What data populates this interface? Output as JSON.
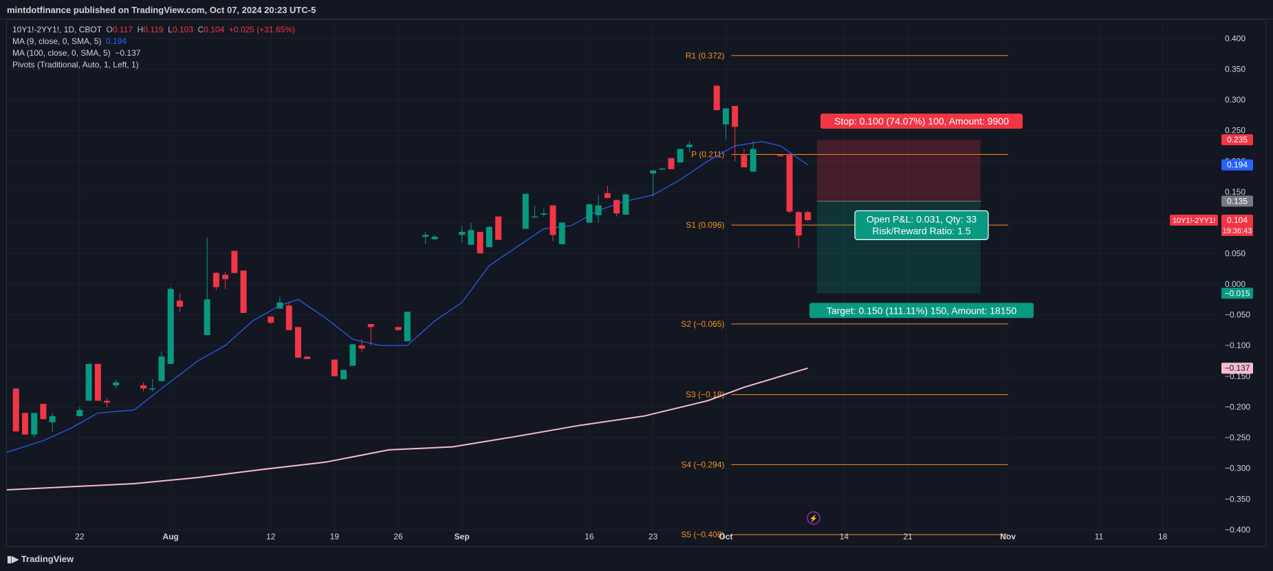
{
  "header": {
    "publisher_line": "mintdotfinance published on TradingView.com, Oct 07, 2024 20:23 UTC-5"
  },
  "legend": {
    "symbol": "10Y1!-2YY1!, 1D, CBOT",
    "o_label": "O",
    "o": "0.117",
    "h_label": "H",
    "h": "0.119",
    "l_label": "L",
    "l": "0.103",
    "c_label": "C",
    "c": "0.104",
    "change": "+0.025 (+31.65%)",
    "ma9_label": "MA (9, close, 0, SMA, 5)",
    "ma9_value": "0.194",
    "ma100_label": "MA (100, close, 0, SMA, 5)",
    "ma100_value": "−0.137",
    "pivots_label": "Pivots (Traditional, Auto, 1, Left, 1)"
  },
  "footer": {
    "brand": "TradingView"
  },
  "colors": {
    "up": "#089981",
    "down": "#f23645",
    "ma9": "#2962ff",
    "ma100": "#f8bbd0",
    "pivot": "#f7931a",
    "bg": "#131722",
    "grid": "#1e222d"
  },
  "chart_data": {
    "type": "candlestick",
    "ylim": [
      -0.4,
      0.43
    ],
    "y_ticks": [
      "0.400",
      "0.350",
      "0.300",
      "0.250",
      "0.200",
      "0.150",
      "0.100",
      "0.050",
      "0.000",
      "−0.050",
      "−0.100",
      "−0.150",
      "−0.200",
      "−0.250",
      "−0.300",
      "−0.350",
      "−0.400"
    ],
    "x_ticks": [
      {
        "label": "22",
        "date": "2024-07-22"
      },
      {
        "label": "Aug",
        "date": "2024-08-01"
      },
      {
        "label": "12",
        "date": "2024-08-12"
      },
      {
        "label": "19",
        "date": "2024-08-19"
      },
      {
        "label": "26",
        "date": "2024-08-26"
      },
      {
        "label": "Sep",
        "date": "2024-09-02"
      },
      {
        "label": "16",
        "date": "2024-09-16"
      },
      {
        "label": "23",
        "date": "2024-09-23"
      },
      {
        "label": "Oct",
        "date": "2024-10-01"
      },
      {
        "label": "14",
        "date": "2024-10-14"
      },
      {
        "label": "21",
        "date": "2024-10-21"
      },
      {
        "label": "Nov",
        "date": "2024-11-01"
      },
      {
        "label": "11",
        "date": "2024-11-11"
      },
      {
        "label": "18",
        "date": "2024-11-18"
      }
    ],
    "x_range": [
      "2024-07-14",
      "2024-11-24"
    ],
    "candles": [
      {
        "d": "2024-07-15",
        "o": -0.17,
        "h": -0.17,
        "l": -0.24,
        "c": -0.24
      },
      {
        "d": "2024-07-16",
        "o": -0.21,
        "h": -0.21,
        "l": -0.245,
        "c": -0.245
      },
      {
        "d": "2024-07-17",
        "o": -0.245,
        "h": -0.21,
        "l": -0.25,
        "c": -0.21
      },
      {
        "d": "2024-07-18",
        "o": -0.195,
        "h": -0.195,
        "l": -0.22,
        "c": -0.22
      },
      {
        "d": "2024-07-19",
        "o": -0.225,
        "h": -0.21,
        "l": -0.24,
        "c": -0.215
      },
      {
        "d": "2024-07-22",
        "o": -0.215,
        "h": -0.2,
        "l": -0.215,
        "c": -0.205
      },
      {
        "d": "2024-07-23",
        "o": -0.19,
        "h": -0.13,
        "l": -0.19,
        "c": -0.13
      },
      {
        "d": "2024-07-24",
        "o": -0.13,
        "h": -0.13,
        "l": -0.19,
        "c": -0.19
      },
      {
        "d": "2024-07-25",
        "o": -0.19,
        "h": -0.185,
        "l": -0.2,
        "c": -0.193
      },
      {
        "d": "2024-07-26",
        "o": -0.165,
        "h": -0.155,
        "l": -0.17,
        "c": -0.16
      },
      {
        "d": "2024-07-29",
        "o": -0.165,
        "h": -0.16,
        "l": -0.175,
        "c": -0.17
      },
      {
        "d": "2024-07-30",
        "o": -0.17,
        "h": -0.155,
        "l": -0.175,
        "c": -0.17
      },
      {
        "d": "2024-07-31",
        "o": -0.158,
        "h": -0.11,
        "l": -0.158,
        "c": -0.118
      },
      {
        "d": "2024-08-01",
        "o": -0.13,
        "h": -0.005,
        "l": -0.13,
        "c": -0.008
      },
      {
        "d": "2024-08-02",
        "o": -0.027,
        "h": -0.015,
        "l": -0.045,
        "c": -0.037
      },
      {
        "d": "2024-08-05",
        "o": -0.083,
        "h": 0.075,
        "l": -0.083,
        "c": -0.025
      },
      {
        "d": "2024-08-06",
        "o": 0.018,
        "h": 0.02,
        "l": -0.01,
        "c": -0.005
      },
      {
        "d": "2024-08-07",
        "o": 0.015,
        "h": 0.02,
        "l": -0.008,
        "c": 0.008
      },
      {
        "d": "2024-08-08",
        "o": 0.054,
        "h": 0.054,
        "l": 0.018,
        "c": 0.018
      },
      {
        "d": "2024-08-09",
        "o": 0.022,
        "h": 0.022,
        "l": -0.047,
        "c": -0.047
      },
      {
        "d": "2024-08-12",
        "o": -0.053,
        "h": -0.053,
        "l": -0.065,
        "c": -0.063
      },
      {
        "d": "2024-08-13",
        "o": -0.04,
        "h": -0.02,
        "l": -0.04,
        "c": -0.03
      },
      {
        "d": "2024-08-14",
        "o": -0.035,
        "h": -0.03,
        "l": -0.075,
        "c": -0.075
      },
      {
        "d": "2024-08-15",
        "o": -0.07,
        "h": -0.07,
        "l": -0.12,
        "c": -0.12
      },
      {
        "d": "2024-08-16",
        "o": -0.118,
        "h": -0.118,
        "l": -0.122,
        "c": -0.122
      },
      {
        "d": "2024-08-19",
        "o": -0.123,
        "h": -0.123,
        "l": -0.15,
        "c": -0.15
      },
      {
        "d": "2024-08-20",
        "o": -0.155,
        "h": -0.14,
        "l": -0.155,
        "c": -0.14
      },
      {
        "d": "2024-08-21",
        "o": -0.133,
        "h": -0.098,
        "l": -0.133,
        "c": -0.098
      },
      {
        "d": "2024-08-22",
        "o": -0.1,
        "h": -0.09,
        "l": -0.11,
        "c": -0.105
      },
      {
        "d": "2024-08-23",
        "o": -0.065,
        "h": -0.065,
        "l": -0.1,
        "c": -0.07
      },
      {
        "d": "2024-08-26",
        "o": -0.07,
        "h": -0.07,
        "l": -0.075,
        "c": -0.075
      },
      {
        "d": "2024-08-27",
        "o": -0.093,
        "h": -0.045,
        "l": -0.093,
        "c": -0.045
      },
      {
        "d": "2024-08-29",
        "o": 0.077,
        "h": 0.085,
        "l": 0.065,
        "c": 0.08
      },
      {
        "d": "2024-08-30",
        "o": 0.073,
        "h": 0.08,
        "l": 0.072,
        "c": 0.077
      },
      {
        "d": "2024-09-02",
        "o": 0.08,
        "h": 0.095,
        "l": 0.067,
        "c": 0.085
      },
      {
        "d": "2024-09-03",
        "o": 0.064,
        "h": 0.1,
        "l": 0.064,
        "c": 0.088
      },
      {
        "d": "2024-09-04",
        "o": 0.085,
        "h": 0.085,
        "l": 0.05,
        "c": 0.05
      },
      {
        "d": "2024-09-05",
        "o": 0.06,
        "h": 0.095,
        "l": 0.06,
        "c": 0.093
      },
      {
        "d": "2024-09-06",
        "o": 0.11,
        "h": 0.11,
        "l": 0.072,
        "c": 0.072
      },
      {
        "d": "2024-09-09",
        "o": 0.09,
        "h": 0.147,
        "l": 0.09,
        "c": 0.147
      },
      {
        "d": "2024-09-10",
        "o": 0.11,
        "h": 0.127,
        "l": 0.11,
        "c": 0.11
      },
      {
        "d": "2024-09-11",
        "o": 0.113,
        "h": 0.123,
        "l": 0.11,
        "c": 0.115
      },
      {
        "d": "2024-09-12",
        "o": 0.128,
        "h": 0.128,
        "l": 0.07,
        "c": 0.08
      },
      {
        "d": "2024-09-13",
        "o": 0.065,
        "h": 0.1,
        "l": 0.065,
        "c": 0.1
      },
      {
        "d": "2024-09-16",
        "o": 0.1,
        "h": 0.13,
        "l": 0.1,
        "c": 0.13
      },
      {
        "d": "2024-09-17",
        "o": 0.112,
        "h": 0.145,
        "l": 0.1,
        "c": 0.128
      },
      {
        "d": "2024-09-18",
        "o": 0.148,
        "h": 0.16,
        "l": 0.14,
        "c": 0.14
      },
      {
        "d": "2024-09-19",
        "o": 0.137,
        "h": 0.137,
        "l": 0.11,
        "c": 0.115
      },
      {
        "d": "2024-09-20",
        "o": 0.113,
        "h": 0.148,
        "l": 0.113,
        "c": 0.146
      },
      {
        "d": "2024-09-23",
        "o": 0.18,
        "h": 0.18,
        "l": 0.142,
        "c": 0.185
      },
      {
        "d": "2024-09-24",
        "o": 0.188,
        "h": 0.19,
        "l": 0.186,
        "c": 0.188
      },
      {
        "d": "2024-09-25",
        "o": 0.205,
        "h": 0.205,
        "l": 0.187,
        "c": 0.187
      },
      {
        "d": "2024-09-26",
        "o": 0.198,
        "h": 0.22,
        "l": 0.198,
        "c": 0.22
      },
      {
        "d": "2024-09-27",
        "o": 0.223,
        "h": 0.232,
        "l": 0.215,
        "c": 0.227
      },
      {
        "d": "2024-09-30",
        "o": 0.323,
        "h": 0.323,
        "l": 0.283,
        "c": 0.283
      },
      {
        "d": "2024-10-01",
        "o": 0.26,
        "h": 0.286,
        "l": 0.235,
        "c": 0.286
      },
      {
        "d": "2024-10-02",
        "o": 0.29,
        "h": 0.29,
        "l": 0.2,
        "c": 0.256
      },
      {
        "d": "2024-10-03",
        "o": 0.21,
        "h": 0.22,
        "l": 0.19,
        "c": 0.19
      },
      {
        "d": "2024-10-04",
        "o": 0.183,
        "h": 0.233,
        "l": 0.183,
        "c": 0.22
      },
      {
        "d": "2024-10-07",
        "o": 0.21,
        "h": 0.212,
        "l": 0.208,
        "c": 0.208
      },
      {
        "d": "2024-10-08",
        "o": 0.212,
        "h": 0.212,
        "l": 0.115,
        "c": 0.118
      },
      {
        "d": "2024-10-09",
        "o": 0.117,
        "h": 0.119,
        "l": 0.058,
        "c": 0.079
      },
      {
        "d": "2024-10-10",
        "o": 0.117,
        "h": 0.119,
        "l": 0.103,
        "c": 0.104
      }
    ],
    "ma9": [
      [
        "2024-07-14",
        -0.274
      ],
      [
        "2024-07-18",
        -0.255
      ],
      [
        "2024-07-21",
        -0.235
      ],
      [
        "2024-07-24",
        -0.21
      ],
      [
        "2024-07-28",
        -0.205
      ],
      [
        "2024-07-31",
        -0.17
      ],
      [
        "2024-08-04",
        -0.125
      ],
      [
        "2024-08-07",
        -0.1
      ],
      [
        "2024-08-10",
        -0.06
      ],
      [
        "2024-08-13",
        -0.035
      ],
      [
        "2024-08-15",
        -0.025
      ],
      [
        "2024-08-18",
        -0.055
      ],
      [
        "2024-08-21",
        -0.09
      ],
      [
        "2024-08-24",
        -0.1
      ],
      [
        "2024-08-27",
        -0.1
      ],
      [
        "2024-08-30",
        -0.06
      ],
      [
        "2024-09-02",
        -0.03
      ],
      [
        "2024-09-05",
        0.03
      ],
      [
        "2024-09-08",
        0.06
      ],
      [
        "2024-09-11",
        0.09
      ],
      [
        "2024-09-14",
        0.095
      ],
      [
        "2024-09-17",
        0.12
      ],
      [
        "2024-09-20",
        0.135
      ],
      [
        "2024-09-23",
        0.145
      ],
      [
        "2024-09-26",
        0.17
      ],
      [
        "2024-09-29",
        0.2
      ],
      [
        "2024-10-02",
        0.225
      ],
      [
        "2024-10-05",
        0.232
      ],
      [
        "2024-10-07",
        0.225
      ],
      [
        "2024-10-10",
        0.194
      ]
    ],
    "ma100": [
      [
        "2024-07-14",
        -0.335
      ],
      [
        "2024-07-21",
        -0.33
      ],
      [
        "2024-07-28",
        -0.325
      ],
      [
        "2024-08-04",
        -0.315
      ],
      [
        "2024-08-11",
        -0.302
      ],
      [
        "2024-08-18",
        -0.29
      ],
      [
        "2024-08-25",
        -0.27
      ],
      [
        "2024-09-01",
        -0.265
      ],
      [
        "2024-09-08",
        -0.248
      ],
      [
        "2024-09-15",
        -0.23
      ],
      [
        "2024-09-22",
        -0.215
      ],
      [
        "2024-09-29",
        -0.19
      ],
      [
        "2024-10-03",
        -0.168
      ],
      [
        "2024-10-10",
        -0.137
      ]
    ],
    "pivots": [
      {
        "label": "R1 (0.372)",
        "value": 0.372
      },
      {
        "label": "P (0.211)",
        "value": 0.211
      },
      {
        "label": "S1 (0.096)",
        "value": 0.096
      },
      {
        "label": "S2 (−0.065)",
        "value": -0.065
      },
      {
        "label": "S3 (−0.18)",
        "value": -0.18
      },
      {
        "label": "S4 (−0.294)",
        "value": -0.294
      },
      {
        "label": "S5 (−0.408)",
        "value": -0.408
      }
    ],
    "pivot_range": [
      "2024-10-01",
      "2024-11-01"
    ],
    "position": {
      "entry": 0.135,
      "stop": 0.235,
      "target": -0.015,
      "x_start": "2024-10-11",
      "x_end": "2024-10-29",
      "stop_label": "Stop: 0.100 (74.07%) 100, Amount: 9900",
      "target_label": "Target: 0.150 (111.11%) 150, Amount: 18150",
      "pnl_label": "Open P&L: 0.031, Qty: 33",
      "rr_label": "Risk/Reward Ratio: 1.5"
    },
    "price_tags": [
      {
        "text": "0.235",
        "value": 0.235,
        "bg": "#f23645",
        "fg": "#ffffff"
      },
      {
        "text": "0.194",
        "value": 0.194,
        "bg": "#2962ff",
        "fg": "#ffffff"
      },
      {
        "text": "0.135",
        "value": 0.135,
        "bg": "#787b86",
        "fg": "#ffffff"
      },
      {
        "text": "0.104",
        "value": 0.104,
        "bg": "#f23645",
        "fg": "#ffffff"
      },
      {
        "text": "−0.015",
        "value": -0.015,
        "bg": "#089981",
        "fg": "#ffffff"
      },
      {
        "text": "−0.137",
        "value": -0.137,
        "bg": "#f8bbd0",
        "fg": "#131722"
      }
    ],
    "symbol_tag": "10Y1!-2YY1!",
    "countdown": "19:36:43"
  }
}
